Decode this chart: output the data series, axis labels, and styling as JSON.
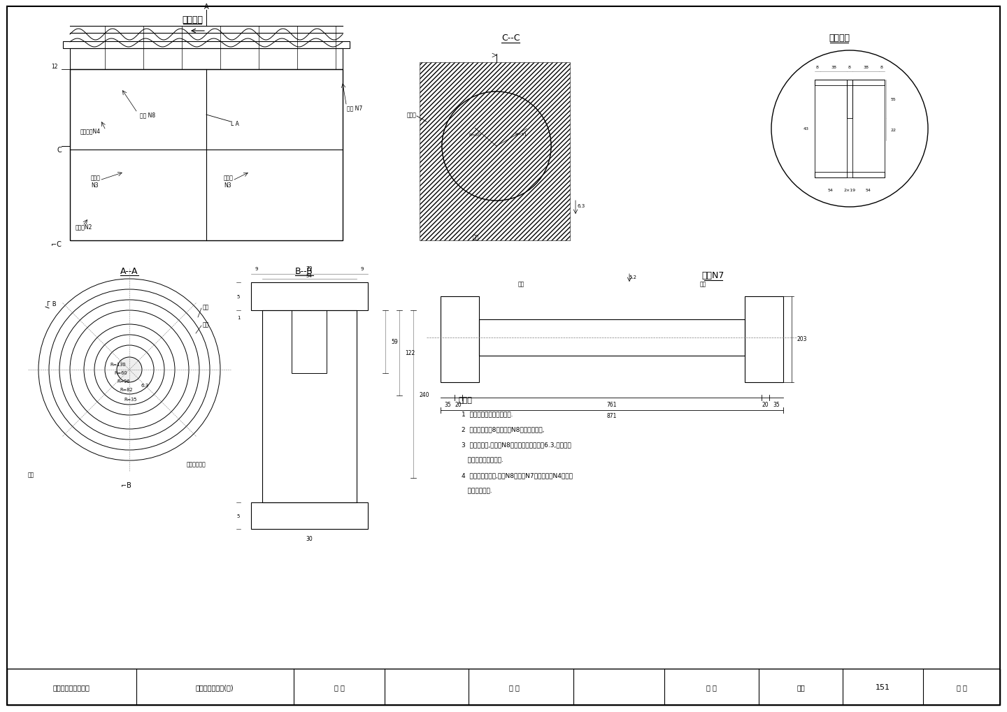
{
  "bg_color": "#ffffff",
  "line_color": "#000000",
  "title_driving": "棍动装置",
  "title_cc": "C--C",
  "title_wheel": "轮槽大样",
  "title_aa": "A--A",
  "title_bb": "B--B",
  "title_axle": "棍轴N7",
  "label_zonggeban": "纵隔板",
  "label_fuben": "复苯",
  "label_huanlun": "滑轮 N8",
  "label_jiajingban": "加劲钢板N4",
  "label_fubanbN3a": "腹面板 N3",
  "label_fubanbN3b": "腹面板 N3",
  "label_dimianban": "底面板N2",
  "label_gunzhouN7": "棍轴 N7",
  "label_caogou": "槽孔",
  "label_tucamo": "涂抹四氟黄油",
  "label_huancao": "轮槽",
  "label_glide": "滑轮",
  "notes_title": "附注：",
  "notes": [
    "1  本图尺寸均以毫米为单位.",
    "2  每个棍轴上由8块小滑轮N8组成一组滑轮,",
    "3  棍动装置中,应保证N8两滑轮片间光洁度为6.3,且两滑轮",
    "   片间应涂抹四氟黄油.",
    "4  安装棍动装置时,滑轮N8与棍轴N7及加劲钢板N4间均应",
    "   涂抹四氟黄油."
  ],
  "footer_project": "巫山县巫峡长江大桥",
  "footer_title": "塔顶索鞍构造图(二)",
  "footer_designer": "设 计",
  "footer_checker": "复 核",
  "footer_approver": "审 核",
  "footer_drawing_no": "图号",
  "footer_number": "151",
  "footer_date": "日 期"
}
